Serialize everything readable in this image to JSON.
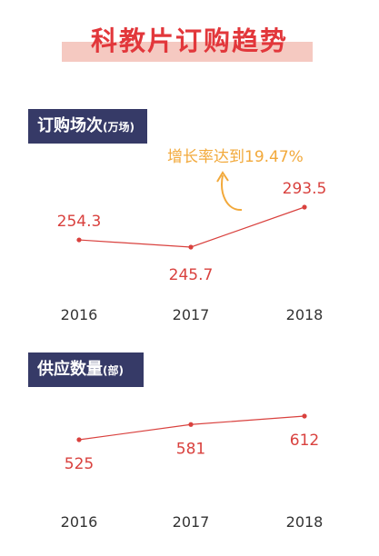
{
  "title": "科教片订购趋势",
  "annotation": "增长率达到19.47%",
  "colors": {
    "title": "#e2373b",
    "title_band": "#f5c9c1",
    "label_bg": "#363a67",
    "line": "#d9413e",
    "annotation": "#f2a93b",
    "year_text": "#333333"
  },
  "chart_data": [
    {
      "type": "line",
      "title": "订购场次",
      "unit": "(万场)",
      "categories": [
        "2016",
        "2017",
        "2018"
      ],
      "values": [
        254.3,
        245.7,
        293.5
      ],
      "value_labels": [
        "254.3",
        "245.7",
        "293.5"
      ],
      "label_positions": [
        "above",
        "below",
        "above"
      ],
      "grid": false,
      "legend": "none"
    },
    {
      "type": "line",
      "title": "供应数量",
      "unit": "(部)",
      "categories": [
        "2016",
        "2017",
        "2018"
      ],
      "values": [
        525,
        581,
        612
      ],
      "value_labels": [
        "525",
        "581",
        "612"
      ],
      "label_positions": [
        "below",
        "below",
        "below"
      ],
      "grid": false,
      "legend": "none"
    }
  ]
}
